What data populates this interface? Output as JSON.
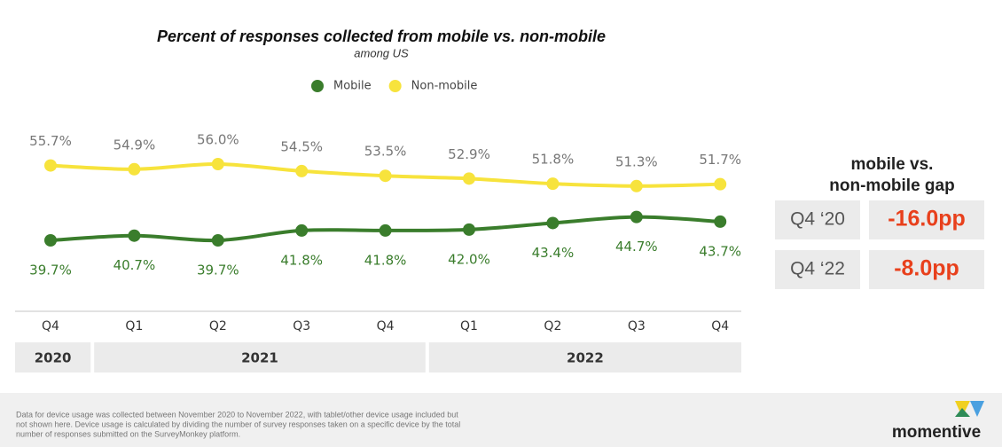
{
  "chart_data": {
    "type": "line",
    "title": "Percent of responses collected from mobile vs. non-mobile",
    "subtitle": "among US",
    "categories": [
      "Q4",
      "Q1",
      "Q2",
      "Q3",
      "Q4",
      "Q1",
      "Q2",
      "Q3",
      "Q4"
    ],
    "year_groups": [
      {
        "label": "2020",
        "span": 1
      },
      {
        "label": "2021",
        "span": 4
      },
      {
        "label": "2022",
        "span": 4
      }
    ],
    "series": [
      {
        "name": "Mobile",
        "color": "#3a7d2c",
        "values": [
          39.7,
          40.7,
          39.7,
          41.8,
          41.8,
          42.0,
          43.4,
          44.7,
          43.7
        ],
        "value_labels": [
          "39.7%",
          "40.7%",
          "39.7%",
          "41.8%",
          "41.8%",
          "42.0%",
          "43.4%",
          "44.7%",
          "43.7%"
        ]
      },
      {
        "name": "Non-mobile",
        "color": "#f7e33c",
        "values": [
          55.7,
          54.9,
          56.0,
          54.5,
          53.5,
          52.9,
          51.8,
          51.3,
          51.7
        ],
        "value_labels": [
          "55.7%",
          "54.9%",
          "56.0%",
          "54.5%",
          "53.5%",
          "52.9%",
          "51.8%",
          "51.3%",
          "51.7%"
        ]
      }
    ]
  },
  "gap_panel": {
    "title": [
      "mobile vs.",
      "non-mobile gap"
    ],
    "rows": [
      {
        "label": "Q4 ‘20",
        "value": "-16.0pp"
      },
      {
        "label": "Q4 ‘22",
        "value": "-8.0pp"
      }
    ]
  },
  "footer": {
    "note": [
      "Data for device usage was collected between November 2020 to November 2022, with tablet/other device usage included but",
      "not shown here. Device usage is calculated by dividing the number of survey responses taken on a specific device by the total",
      "number of responses submitted on the SurveyMonkey platform."
    ],
    "logo": "momentive"
  }
}
